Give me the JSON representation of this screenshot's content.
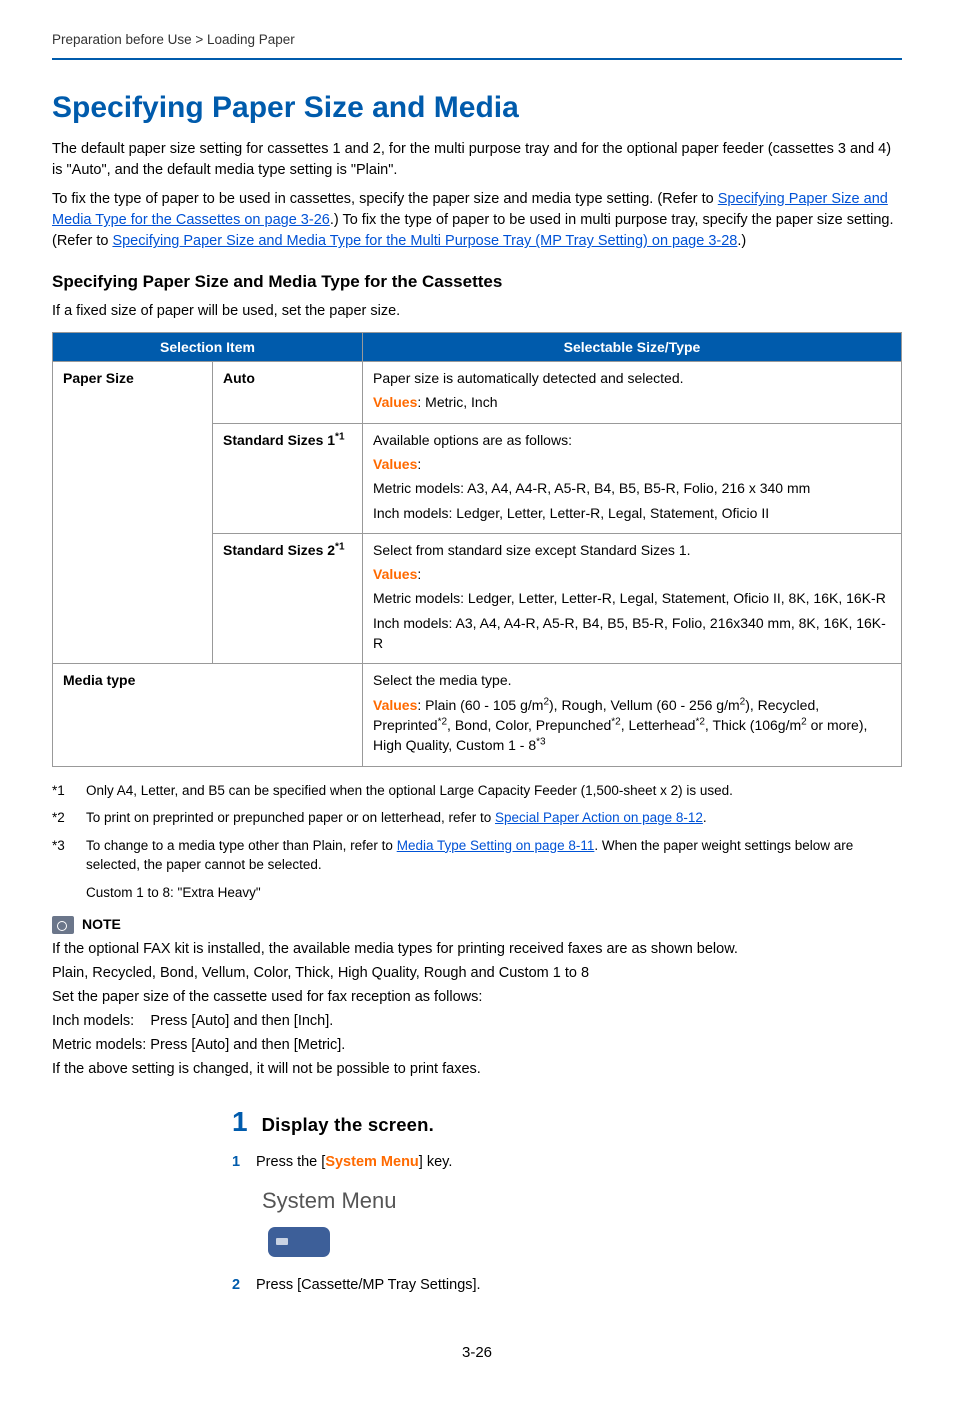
{
  "breadcrumb": "Preparation before Use > Loading Paper",
  "title": "Specifying Paper Size and Media",
  "intro1": "The default paper size setting for cassettes 1 and 2, for the multi purpose tray and for the optional paper feeder (cassettes 3 and 4) is \"Auto\", and the default media type setting is \"Plain\".",
  "intro2_a": "To fix the type of paper to be used in cassettes, specify the paper size and media type setting. (Refer to ",
  "intro2_link1": "Specifying Paper Size and Media Type for the Cassettes on page 3-26",
  "intro2_b": ".) To fix the type of paper to be used in multi purpose tray, specify the paper size setting. (Refer to ",
  "intro2_link2": "Specifying Paper Size and Media Type for the Multi Purpose Tray (MP Tray Setting) on page 3-28",
  "intro2_c": ".)",
  "subhead": "Specifying Paper Size and Media Type for the Cassettes",
  "sub_intro": "If a fixed size of paper will be used, set the paper size.",
  "table": {
    "header_left": "Selection Item",
    "header_right": "Selectable Size/Type",
    "paper_size_label": "Paper Size",
    "auto_label": "Auto",
    "auto_desc": "Paper size is automatically detected and selected.",
    "values_label": "Values",
    "auto_values": ": Metric, Inch",
    "std1_label_a": "Standard Sizes 1",
    "std1_sup": "*1",
    "std1_line1": "Available options are as follows:",
    "std1_values": ":",
    "std1_line2": "Metric models: A3, A4, A4-R, A5-R, B4, B5, B5-R, Folio, 216 x 340 mm",
    "std1_line3": "Inch models: Ledger, Letter, Letter-R, Legal, Statement, Oficio II",
    "std2_label_a": "Standard Sizes 2",
    "std2_sup": "*1",
    "std2_line1": "Select from standard size except Standard Sizes 1.",
    "std2_values": ":",
    "std2_line2": "Metric models: Ledger, Letter, Letter-R, Legal, Statement, Oficio II, 8K, 16K, 16K-R",
    "std2_line3": "Inch models: A3, A4, A4-R, A5-R, B4, B5, B5-R, Folio, 216x340 mm, 8K, 16K, 16K-R",
    "media_label": "Media type",
    "media_line1": "Select the media type.",
    "media_values_a": ": Plain (60 - 105 g/m",
    "media_values_b": "), Rough, Vellum (60 - 256 g/m",
    "media_values_c": "), Recycled, Preprinted",
    "media_values_d": ", Bond, Color, Prepunched",
    "media_values_e": ", Letterhead",
    "media_values_f": ", Thick (106g/m",
    "media_values_g": " or more), High Quality, Custom 1 - 8",
    "sup2": "2",
    "sup_star2": "*2",
    "sup_star3": "*3"
  },
  "fn1_marker": "*1",
  "fn1": "Only A4, Letter, and B5 can be specified when the optional Large Capacity Feeder (1,500-sheet x 2) is used.",
  "fn2_marker": "*2",
  "fn2_a": "To print on preprinted or prepunched paper or on letterhead, refer to ",
  "fn2_link": "Special Paper Action on page 8-12",
  "fn2_b": ".",
  "fn3_marker": "*3",
  "fn3_a": "To change to a media type other than Plain, refer to ",
  "fn3_link": "Media Type Setting on page 8-11",
  "fn3_b": ". When the paper weight settings below are selected, the paper cannot be selected.",
  "fn3_sub": "Custom 1 to 8: \"Extra Heavy\"",
  "note_label": "NOTE",
  "note_p1": "If the optional FAX kit is installed, the available media types for printing received faxes are as shown below.",
  "note_p2": "Plain, Recycled, Bond, Vellum, Color, Thick, High Quality, Rough and Custom 1 to 8",
  "note_p3": "Set the paper size of the cassette used for fax reception as follows:",
  "note_p4": "Inch models:    Press [Auto] and then [Inch].",
  "note_p5": "Metric models: Press [Auto] and then [Metric].",
  "note_p6": "If the above setting is changed, it will not be possible to print faxes.",
  "step_num": "1",
  "step_title": "Display the screen.",
  "sub1_num": "1",
  "sub1_a": "Press the [",
  "sub1_key": "System Menu",
  "sub1_b": "] key.",
  "sys_menu_text": "System Menu",
  "sub2_num": "2",
  "sub2": "Press [Cassette/MP Tray Settings].",
  "page_number": "3-26"
}
